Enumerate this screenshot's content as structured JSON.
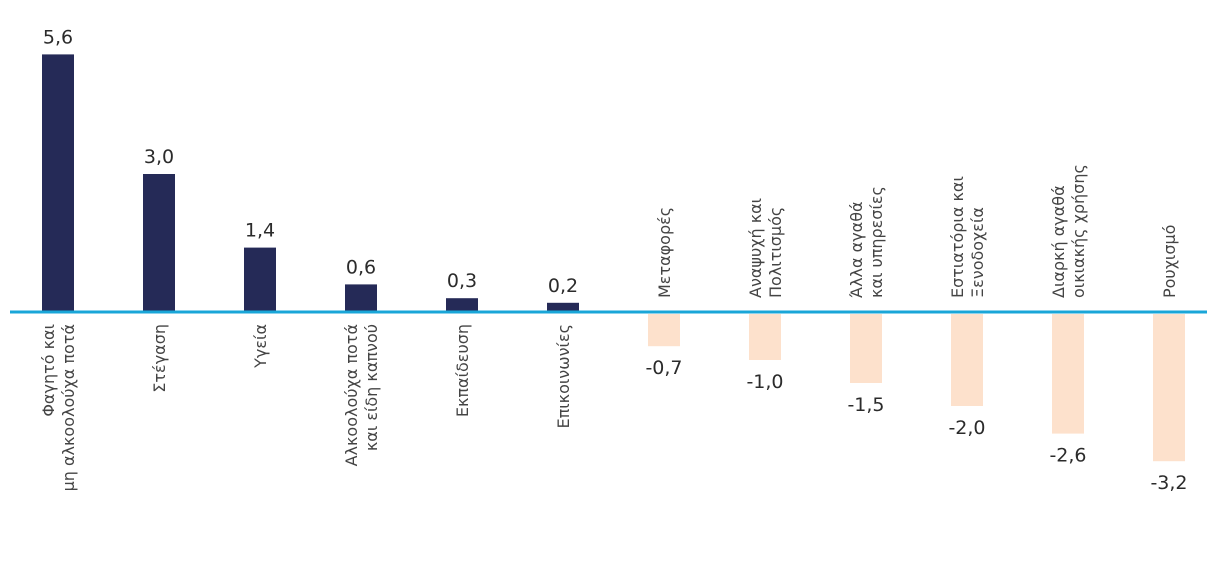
{
  "chart_data": {
    "type": "bar",
    "categories": [
      [
        "Φαγητό και",
        "μη αλκοολούχα ποτά"
      ],
      [
        "Στέγαση"
      ],
      [
        "Υγεία"
      ],
      [
        "Αλκοολούχα ποτά",
        "και είδη καπνού"
      ],
      [
        "Εκπαίδευση"
      ],
      [
        "Επικοινωνίες"
      ],
      [
        "Μεταφορές"
      ],
      [
        "Αναψυχή και",
        "Πολιτισμός"
      ],
      [
        "Άλλα αγαθά",
        "και υπηρεσίες"
      ],
      [
        "Εστιατόρια και",
        "Ξενοδοχεία"
      ],
      [
        "Διαρκή αγαθά",
        "οικιακής χρήσης"
      ],
      [
        "Ρουχισμό"
      ]
    ],
    "values": [
      5.6,
      3.0,
      1.4,
      0.6,
      0.3,
      0.2,
      -0.7,
      -1.0,
      -1.5,
      -2.0,
      -2.6,
      -3.2
    ],
    "value_labels": [
      "5,6",
      "3,0",
      "1,4",
      "0,6",
      "0,3",
      "0,2",
      "-0,7",
      "-1,0",
      "-1,5",
      "-2,0",
      "-2,6",
      "-3,2"
    ],
    "title": "",
    "xlabel": "",
    "ylabel": "",
    "ylim": [
      -3.4,
      6.1
    ],
    "grid": false,
    "colors": {
      "positive": "#252a57",
      "negative": "#fde1cc",
      "axis": "#1aa6d8"
    }
  }
}
